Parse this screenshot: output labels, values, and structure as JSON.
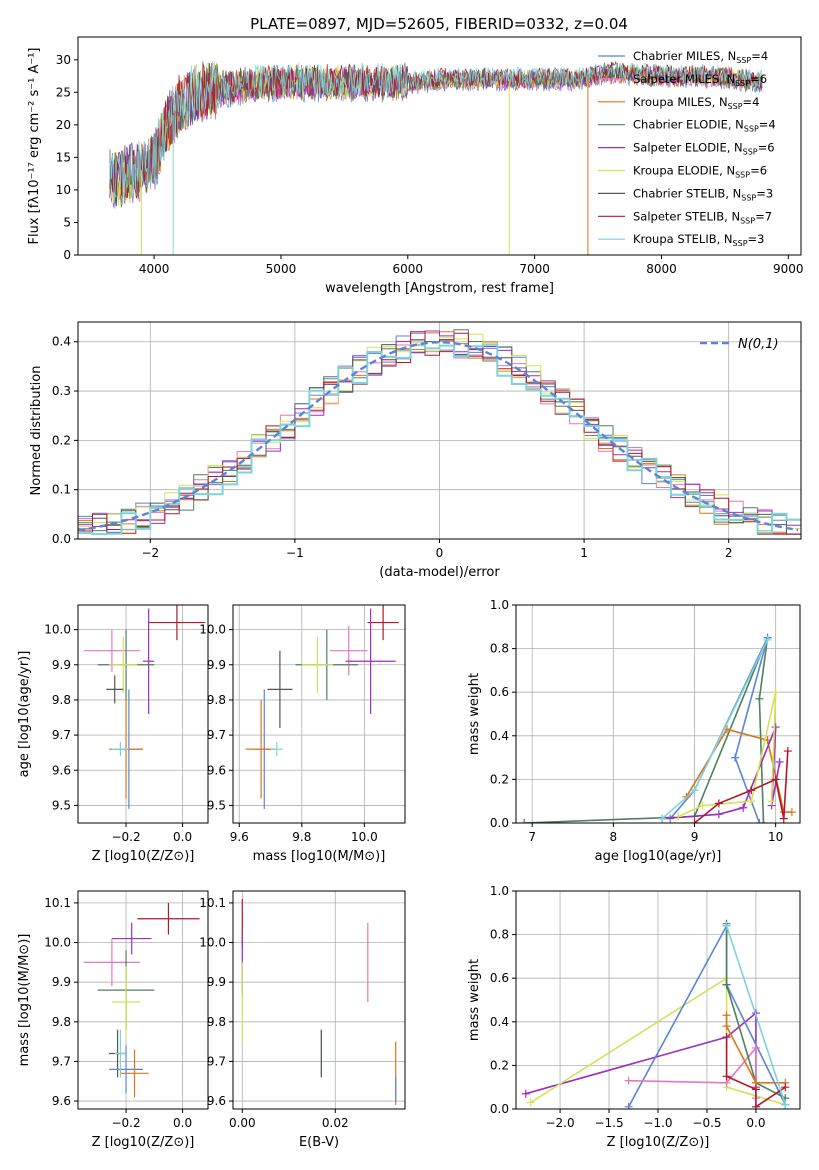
{
  "figure": {
    "title": "PLATE=0897, MJD=52605, FIBERID=0332, z=0.04"
  },
  "chart_data": [
    {
      "id": "spectrum",
      "type": "line",
      "xlabel": "wavelength [Angstrom, rest frame]",
      "ylabel": "Flux [fλ10⁻¹⁷ erg cm⁻² s⁻¹ A⁻¹]",
      "xlim": [
        3400,
        9100
      ],
      "ylim": [
        0,
        33.5
      ],
      "xticks": [
        4000,
        5000,
        6000,
        7000,
        8000,
        9000
      ],
      "yticks": [
        0,
        5,
        10,
        15,
        20,
        25,
        30
      ],
      "grid": false,
      "legend": "top-right",
      "continuum": {
        "x": [
          3650,
          3700,
          3800,
          3900,
          4000,
          4100,
          4200,
          4300,
          4400,
          4500,
          4700,
          5000,
          5300,
          5600,
          6000,
          6300,
          6600,
          7000,
          7300,
          7600,
          8000,
          8400,
          8800
        ],
        "y": [
          12,
          11.5,
          12.5,
          13,
          14.5,
          20,
          23,
          24.5,
          25.5,
          25.5,
          26,
          26.5,
          26.5,
          26.5,
          26.5,
          27,
          27,
          27,
          27,
          28,
          27.5,
          27.5,
          26.5
        ]
      },
      "series": [
        {
          "name": "Chabrier MILES, N_SSP=4",
          "color": "#5b84d6"
        },
        {
          "name": "Salpeter MILES, N_SSP=6",
          "color": "#e377c2"
        },
        {
          "name": "Kroupa MILES, N_SSP=4",
          "color": "#d9771f"
        },
        {
          "name": "Chabrier ELODIE, N_SSP=4",
          "color": "#4f7f5f"
        },
        {
          "name": "Salpeter ELODIE, N_SSP=6",
          "color": "#9b30c0"
        },
        {
          "name": "Kroupa ELODIE, N_SSP=6",
          "color": "#d4e157"
        },
        {
          "name": "Chabrier STELIB, N_SSP=3",
          "color": "#555555"
        },
        {
          "name": "Salpeter STELIB, N_SSP=7",
          "color": "#b2182b"
        },
        {
          "name": "Kroupa STELIB, N_SSP=3",
          "color": "#7fd3d8"
        }
      ]
    },
    {
      "id": "residuals",
      "type": "line",
      "xlabel": "(data-model)/error",
      "ylabel": "Normed distribution",
      "xlim": [
        -2.5,
        2.5
      ],
      "ylim": [
        0,
        0.44
      ],
      "xticks": [
        -2,
        -1,
        0,
        1,
        2
      ],
      "yticks": [
        0.0,
        0.1,
        0.2,
        0.3,
        0.4
      ],
      "grid": true,
      "legend": "top-right",
      "reference": {
        "name": "N(0,1)",
        "mean": 0,
        "sigma": 1,
        "color": "#5b84d6"
      }
    },
    {
      "id": "age-vs-Z",
      "type": "scatter",
      "xlabel": "Z [log10(Z/Z⊙)]",
      "ylabel": "age  [log10(age/yr)]",
      "xlim": [
        -0.37,
        0.09
      ],
      "ylim": [
        9.45,
        10.07
      ],
      "xticks": [
        -0.2,
        0.0
      ],
      "yticks": [
        9.5,
        9.6,
        9.7,
        9.8,
        9.9,
        10.0
      ],
      "grid": true,
      "points": [
        {
          "x": -0.02,
          "y": 10.02,
          "xerr": 0.1,
          "yerr": 0.05,
          "color": "#b2182b"
        },
        {
          "x": -0.25,
          "y": 9.94,
          "xerr": 0.1,
          "yerr": 0.06,
          "color": "#e377c2"
        },
        {
          "x": -0.12,
          "y": 9.91,
          "xerr": 0.02,
          "yerr": 0.15,
          "color": "#9b30c0"
        },
        {
          "x": -0.2,
          "y": 9.9,
          "xerr": 0.1,
          "yerr": 0.1,
          "color": "#4f7f5f"
        },
        {
          "x": -0.21,
          "y": 9.9,
          "xerr": 0.05,
          "yerr": 0.08,
          "color": "#d4e157"
        },
        {
          "x": -0.24,
          "y": 9.83,
          "xerr": 0.03,
          "yerr": 0.04,
          "color": "#555555"
        },
        {
          "x": -0.19,
          "y": 9.66,
          "xerr": 0.05,
          "yerr": 0.17,
          "color": "#5b84d6"
        },
        {
          "x": -0.2,
          "y": 9.66,
          "xerr": 0.06,
          "yerr": 0.14,
          "color": "#d9771f"
        },
        {
          "x": -0.22,
          "y": 9.66,
          "xerr": 0.03,
          "yerr": 0.02,
          "color": "#7fd3d8"
        }
      ]
    },
    {
      "id": "age-vs-mass",
      "type": "scatter",
      "xlabel": "mass [log10(M/M⊙)]",
      "ylabel": "",
      "xlim": [
        9.58,
        10.13
      ],
      "ylim": [
        9.45,
        10.07
      ],
      "xticks": [
        9.6,
        9.8,
        10.0
      ],
      "yticks": [
        9.5,
        9.6,
        9.7,
        9.8,
        9.9,
        10.0
      ],
      "grid": true,
      "points": [
        {
          "x": 10.06,
          "y": 10.02,
          "xerr": 0.05,
          "yerr": 0.05,
          "color": "#b2182b"
        },
        {
          "x": 9.95,
          "y": 9.94,
          "xerr": 0.06,
          "yerr": 0.07,
          "color": "#e377c2"
        },
        {
          "x": 10.02,
          "y": 9.91,
          "xerr": 0.08,
          "yerr": 0.15,
          "color": "#9b30c0"
        },
        {
          "x": 9.88,
          "y": 9.9,
          "xerr": 0.1,
          "yerr": 0.1,
          "color": "#4f7f5f"
        },
        {
          "x": 9.85,
          "y": 9.9,
          "xerr": 0.05,
          "yerr": 0.08,
          "color": "#d4e157"
        },
        {
          "x": 9.73,
          "y": 9.83,
          "xerr": 0.04,
          "yerr": 0.11,
          "color": "#555555"
        },
        {
          "x": 9.68,
          "y": 9.66,
          "xerr": 0.03,
          "yerr": 0.17,
          "color": "#5b84d6"
        },
        {
          "x": 9.67,
          "y": 9.66,
          "xerr": 0.05,
          "yerr": 0.14,
          "color": "#d9771f"
        },
        {
          "x": 9.72,
          "y": 9.66,
          "xerr": 0.02,
          "yerr": 0.02,
          "color": "#7fd3d8"
        }
      ]
    },
    {
      "id": "mass-weight-vs-age",
      "type": "line",
      "xlabel": "age  [log10(age/yr)]",
      "ylabel": "mass weight",
      "xlim": [
        6.8,
        10.3
      ],
      "ylim": [
        0,
        1.0
      ],
      "xticks": [
        7,
        8,
        9,
        10
      ],
      "yticks": [
        0.0,
        0.2,
        0.4,
        0.6,
        0.8,
        1.0
      ],
      "grid": true,
      "series": [
        {
          "color": "#4f7f5f",
          "x": [
            6.9,
            9.0,
            9.9,
            9.8,
            9.85
          ],
          "y": [
            0.0,
            0.03,
            0.85,
            0.57,
            0.0
          ]
        },
        {
          "color": "#5b84d6",
          "x": [
            8.7,
            9.0,
            9.9,
            9.5,
            9.8
          ],
          "y": [
            0.02,
            0.15,
            0.85,
            0.3,
            0.0
          ]
        },
        {
          "color": "#d9771f",
          "x": [
            8.9,
            9.4,
            9.9,
            10.1,
            10.2
          ],
          "y": [
            0.12,
            0.43,
            0.38,
            0.05,
            0.05
          ]
        },
        {
          "color": "#9b30c0",
          "x": [
            8.6,
            9.3,
            9.6,
            10.0,
            9.95,
            10.05
          ],
          "y": [
            0.02,
            0.04,
            0.07,
            0.44,
            0.08,
            0.28
          ]
        },
        {
          "color": "#d4e157",
          "x": [
            8.8,
            9.1,
            9.7,
            10.0,
            9.95
          ],
          "y": [
            0.03,
            0.08,
            0.1,
            0.6,
            0.1
          ]
        },
        {
          "color": "#b2182b",
          "x": [
            9.0,
            9.3,
            9.7,
            10.0,
            10.1,
            10.15
          ],
          "y": [
            0.0,
            0.09,
            0.15,
            0.2,
            0.02,
            0.33
          ]
        },
        {
          "color": "#7fd3d8",
          "x": [
            8.6,
            9.0,
            9.9
          ],
          "y": [
            0.02,
            0.15,
            0.84
          ]
        }
      ]
    },
    {
      "id": "mass-vs-Z",
      "type": "scatter",
      "xlabel": "Z [log10(Z/Z⊙)]",
      "ylabel": "mass [log10(M/M⊙)]",
      "xlim": [
        -0.37,
        0.09
      ],
      "ylim": [
        9.58,
        10.13
      ],
      "xticks": [
        -0.2,
        0.0
      ],
      "yticks": [
        9.6,
        9.7,
        9.8,
        9.9,
        10.0,
        10.1
      ],
      "grid": true,
      "points": [
        {
          "x": -0.05,
          "y": 10.06,
          "xerr": 0.11,
          "yerr": 0.04,
          "color": "#b2182b"
        },
        {
          "x": -0.18,
          "y": 10.01,
          "xerr": 0.07,
          "yerr": 0.04,
          "color": "#9b30c0"
        },
        {
          "x": -0.25,
          "y": 9.95,
          "xerr": 0.1,
          "yerr": 0.06,
          "color": "#e377c2"
        },
        {
          "x": -0.2,
          "y": 9.88,
          "xerr": 0.1,
          "yerr": 0.1,
          "color": "#4f7f5f"
        },
        {
          "x": -0.2,
          "y": 9.85,
          "xerr": 0.05,
          "yerr": 0.09,
          "color": "#d4e157"
        },
        {
          "x": -0.23,
          "y": 9.72,
          "xerr": 0.03,
          "yerr": 0.06,
          "color": "#555555"
        },
        {
          "x": -0.2,
          "y": 9.68,
          "xerr": 0.06,
          "yerr": 0.06,
          "color": "#5b84d6"
        },
        {
          "x": -0.17,
          "y": 9.67,
          "xerr": 0.05,
          "yerr": 0.06,
          "color": "#d9771f"
        },
        {
          "x": -0.22,
          "y": 9.72,
          "xerr": 0.02,
          "yerr": 0.06,
          "color": "#7fd3d8"
        }
      ]
    },
    {
      "id": "mass-vs-ebv",
      "type": "scatter",
      "xlabel": "E(B-V)",
      "ylabel": "",
      "xlim": [
        -0.002,
        0.035
      ],
      "ylim": [
        9.58,
        10.13
      ],
      "xticks": [
        0.0,
        0.02
      ],
      "yticks": [
        9.6,
        9.7,
        9.8,
        9.9,
        10.0,
        10.1
      ],
      "grid": true,
      "points": [
        {
          "x": 0.0,
          "y": 10.05,
          "xerr": 0,
          "yerr": 0.06,
          "color": "#b2182b"
        },
        {
          "x": 0.0,
          "y": 9.95,
          "xerr": 0,
          "yerr": 0.08,
          "color": "#9b30c0"
        },
        {
          "x": 0.0,
          "y": 9.85,
          "xerr": 0,
          "yerr": 0.1,
          "color": "#d4e157"
        },
        {
          "x": 0.027,
          "y": 9.95,
          "xerr": 0,
          "yerr": 0.1,
          "color": "#e377c2"
        },
        {
          "x": 0.017,
          "y": 9.72,
          "xerr": 0,
          "yerr": 0.06,
          "color": "#7fd3d8"
        },
        {
          "x": 0.017,
          "y": 9.72,
          "xerr": 0,
          "yerr": 0.06,
          "color": "#555555"
        },
        {
          "x": 0.033,
          "y": 9.67,
          "xerr": 0,
          "yerr": 0.08,
          "color": "#d9771f"
        },
        {
          "x": 0.033,
          "y": 9.63,
          "xerr": 0,
          "yerr": 0.03,
          "color": "#5b84d6"
        }
      ]
    },
    {
      "id": "mass-weight-vs-Z",
      "type": "line",
      "xlabel": "Z [log10(Z/Z⊙)]",
      "ylabel": "mass weight",
      "xlim": [
        -2.45,
        0.45
      ],
      "ylim": [
        0,
        1.0
      ],
      "xticks": [
        -2.0,
        -1.5,
        -1.0,
        -0.5,
        0.0
      ],
      "yticks": [
        0.0,
        0.2,
        0.4,
        0.6,
        0.8,
        1.0
      ],
      "grid": true,
      "series": [
        {
          "color": "#9b30c0",
          "x": [
            -2.35,
            -0.3,
            0.0,
            0.0
          ],
          "y": [
            0.07,
            0.33,
            0.44,
            0.1
          ]
        },
        {
          "color": "#d4e157",
          "x": [
            -2.3,
            -0.3,
            -0.3,
            0.3
          ],
          "y": [
            0.03,
            0.6,
            0.1,
            0.02
          ]
        },
        {
          "color": "#5b84d6",
          "x": [
            -1.3,
            -0.3,
            -0.3,
            0.3
          ],
          "y": [
            0.01,
            0.84,
            0.57,
            0.02
          ]
        },
        {
          "color": "#e377c2",
          "x": [
            -1.3,
            -0.3,
            0.0,
            0.0
          ],
          "y": [
            0.13,
            0.12,
            0.28,
            0.05
          ]
        },
        {
          "color": "#4f7f5f",
          "x": [
            -0.3,
            -0.3,
            0.0,
            0.3
          ],
          "y": [
            0.85,
            0.57,
            0.12,
            0.05
          ]
        },
        {
          "color": "#d9771f",
          "x": [
            -0.3,
            -0.3,
            0.0,
            0.3
          ],
          "y": [
            0.43,
            0.38,
            0.12,
            0.12
          ]
        },
        {
          "color": "#b2182b",
          "x": [
            -0.3,
            -0.3,
            0.0,
            0.0,
            0.3
          ],
          "y": [
            0.33,
            0.15,
            0.09,
            0.01,
            0.1
          ]
        },
        {
          "color": "#7fd3d8",
          "x": [
            -0.3,
            0.3,
            0.3
          ],
          "y": [
            0.84,
            0.02,
            0.02
          ]
        }
      ]
    }
  ]
}
